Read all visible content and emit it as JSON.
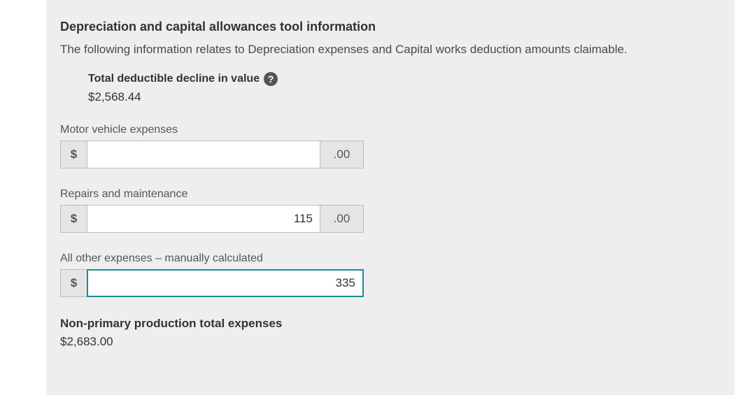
{
  "section": {
    "title": "Depreciation and capital allowances tool information",
    "desc": "The following information relates to Depreciation expenses and Capital works deduction amounts claimable."
  },
  "decline_value": {
    "label": "Total deductible decline in value",
    "amount": "$2,568.44"
  },
  "fields": {
    "motor_vehicle": {
      "label": "Motor vehicle expenses",
      "prefix": "$",
      "value": "",
      "suffix": ".00"
    },
    "repairs": {
      "label": "Repairs and maintenance",
      "prefix": "$",
      "value": "115",
      "suffix": ".00"
    },
    "other": {
      "label": "All other expenses – manually calculated",
      "prefix": "$",
      "value": "335"
    }
  },
  "totals": {
    "label": "Non-primary production total expenses",
    "amount": "$2,683.00"
  },
  "styling": {
    "panel_bg": "#eeeeee",
    "page_bg": "#ffffff",
    "border_color": "#bdbdbd",
    "focus_border_color": "#1b8c95",
    "addon_bg": "#e5e5e5",
    "text_primary": "#333333",
    "text_secondary": "#555555",
    "help_icon_bg": "#555555",
    "title_fontsize": 18,
    "body_fontsize": 17,
    "label_fontsize": 16,
    "input_height": 40,
    "input_narrow_width": 334,
    "input_wide_width": 396
  }
}
